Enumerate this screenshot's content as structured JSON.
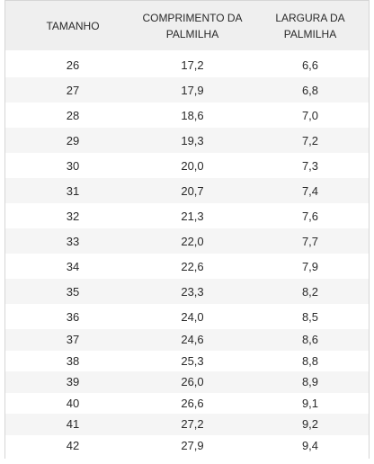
{
  "table": {
    "header": [
      "TAMANHO",
      "COMPRIMENTO DA PALMILHA",
      "LARGURA DA PALMILHA"
    ],
    "rows": [
      [
        "26",
        "17,2",
        "6,6"
      ],
      [
        "27",
        "17,9",
        "6,8"
      ],
      [
        "28",
        "18,6",
        "7,0"
      ],
      [
        "29",
        "19,3",
        "7,2"
      ],
      [
        "30",
        "20,0",
        "7,3"
      ],
      [
        "31",
        "20,7",
        "7,4"
      ],
      [
        "32",
        "21,3",
        "7,6"
      ],
      [
        "33",
        "22,0",
        "7,7"
      ],
      [
        "34",
        "22,6",
        "7,9"
      ],
      [
        "35",
        "23,3",
        "8,2"
      ],
      [
        "36",
        "24,0",
        "8,5"
      ],
      [
        "37",
        "24,6",
        "8,6"
      ],
      [
        "38",
        "25,3",
        "8,8"
      ],
      [
        "39",
        "26,0",
        "8,9"
      ],
      [
        "40",
        "26,6",
        "9,1"
      ],
      [
        "41",
        "27,2",
        "9,2"
      ],
      [
        "42",
        "27,9",
        "9,4"
      ]
    ]
  }
}
